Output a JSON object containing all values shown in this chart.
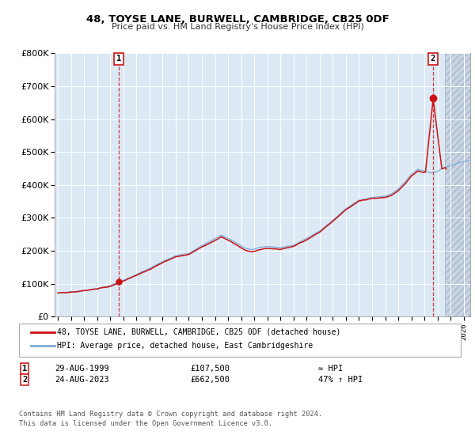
{
  "title": "48, TOYSE LANE, BURWELL, CAMBRIDGE, CB25 0DF",
  "subtitle": "Price paid vs. HM Land Registry's House Price Index (HPI)",
  "legend_line1": "48, TOYSE LANE, BURWELL, CAMBRIDGE, CB25 0DF (detached house)",
  "legend_line2": "HPI: Average price, detached house, East Cambridgeshire",
  "annotation1_label": "1",
  "annotation1_date": "29-AUG-1999",
  "annotation1_price": "£107,500",
  "annotation1_hpi": "≈ HPI",
  "annotation2_label": "2",
  "annotation2_date": "24-AUG-2023",
  "annotation2_price": "£662,500",
  "annotation2_hpi": "47% ↑ HPI",
  "footer1": "Contains HM Land Registry data © Crown copyright and database right 2024.",
  "footer2": "This data is licensed under the Open Government Licence v3.0.",
  "hpi_color": "#7aaad4",
  "price_color": "#cc1111",
  "dot_color": "#cc1111",
  "bg_color": "#dce9f5",
  "grid_color": "#ffffff",
  "ylim": [
    0,
    800000
  ],
  "xlim_start": 1994.75,
  "xlim_end": 2026.5,
  "future_start": 2024.58,
  "sale1_x": 1999.65,
  "sale1_y": 107500,
  "sale2_x": 2023.65,
  "sale2_y": 662500
}
